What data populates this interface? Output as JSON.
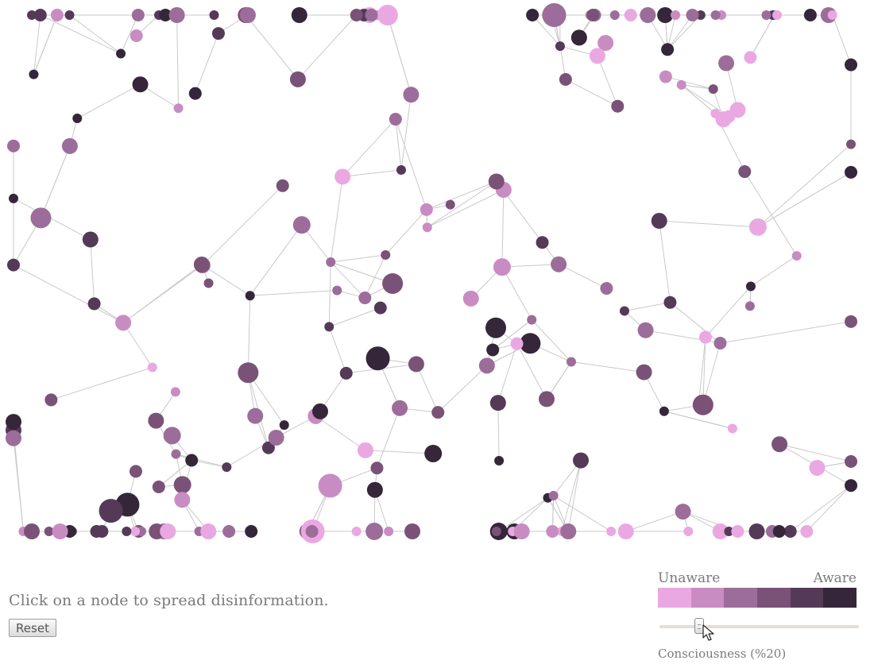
{
  "instruction_text": "Click on a node to spread disinformation.",
  "reset_label": "Reset",
  "legend": {
    "low_label": "Unaware",
    "high_label": "Aware",
    "colors": [
      "#eaa8e2",
      "#c98cc2",
      "#9c6d9a",
      "#7a5277",
      "#553a58",
      "#35263a"
    ]
  },
  "slider": {
    "caption": "Consciousness (%20)",
    "value": 0.2
  },
  "graph": {
    "node_colors": [
      "#eaa8e2",
      "#c98cc2",
      "#9c6d9a",
      "#7a5277",
      "#553a58",
      "#35263a"
    ],
    "edge_color": "#c9c9c9",
    "node_count": 220
  }
}
